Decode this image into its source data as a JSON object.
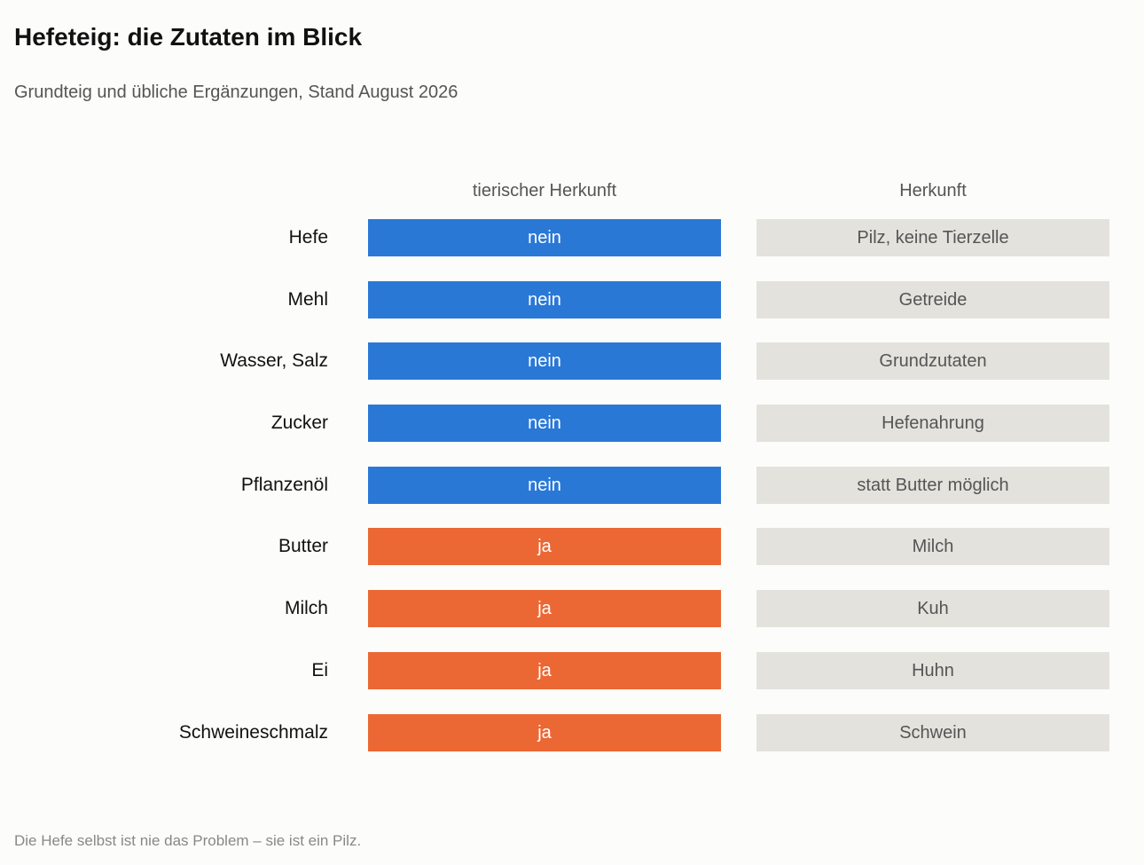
{
  "header": {
    "title": "Hefeteig: die Zutaten im Blick",
    "subtitle": "Grundteig und übliche Ergänzungen, Stand August 2026"
  },
  "columns": {
    "animal": "tierischer Herkunft",
    "origin": "Herkunft"
  },
  "colors": {
    "nein": "#2a78d6",
    "ja": "#eb6834",
    "origin_cell": "#e3e2dc"
  },
  "chart_data": {
    "type": "table",
    "columns": [
      "tierischer Herkunft",
      "Herkunft"
    ],
    "rows": [
      {
        "label": "Hefe",
        "animal": "nein",
        "origin": "Pilz, keine Tierzelle"
      },
      {
        "label": "Mehl",
        "animal": "nein",
        "origin": "Getreide"
      },
      {
        "label": "Wasser, Salz",
        "animal": "nein",
        "origin": "Grundzutaten"
      },
      {
        "label": "Zucker",
        "animal": "nein",
        "origin": "Hefenahrung"
      },
      {
        "label": "Pflanzenöl",
        "animal": "nein",
        "origin": "statt Butter möglich"
      },
      {
        "label": "Butter",
        "animal": "ja",
        "origin": "Milch"
      },
      {
        "label": "Milch",
        "animal": "ja",
        "origin": "Kuh"
      },
      {
        "label": "Ei",
        "animal": "ja",
        "origin": "Huhn"
      },
      {
        "label": "Schweineschmalz",
        "animal": "ja",
        "origin": "Schwein"
      }
    ]
  },
  "footnote": "Die Hefe selbst ist nie das Problem – sie ist ein Pilz."
}
